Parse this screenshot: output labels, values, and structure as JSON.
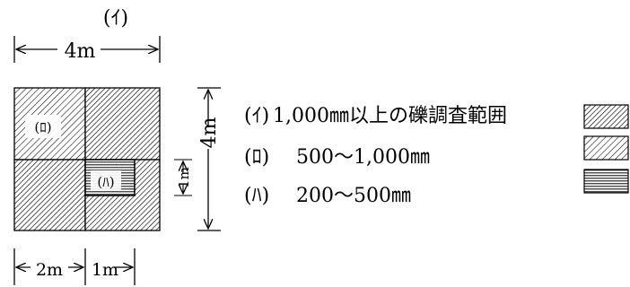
{
  "diagram": {
    "top_label": "(ｲ)",
    "top_dimension": "4m",
    "right_dimension": "4m",
    "small_square_dimension": "1m",
    "bottom_dimension_left": "2m",
    "bottom_dimension_right": "1m",
    "region_labels": {
      "ro": "(ﾛ)",
      "ha": "(ﾊ)"
    }
  },
  "legend": [
    {
      "marker": "(ｲ)",
      "text": "1,000㎜以上の礫調査範囲",
      "pattern": "hatch-dense"
    },
    {
      "marker": "(ﾛ)",
      "text": "500～1,000㎜",
      "pattern": "hatch-medium"
    },
    {
      "marker": "(ﾊ)",
      "text": "200～500㎜",
      "pattern": "horizontal-lines"
    }
  ]
}
